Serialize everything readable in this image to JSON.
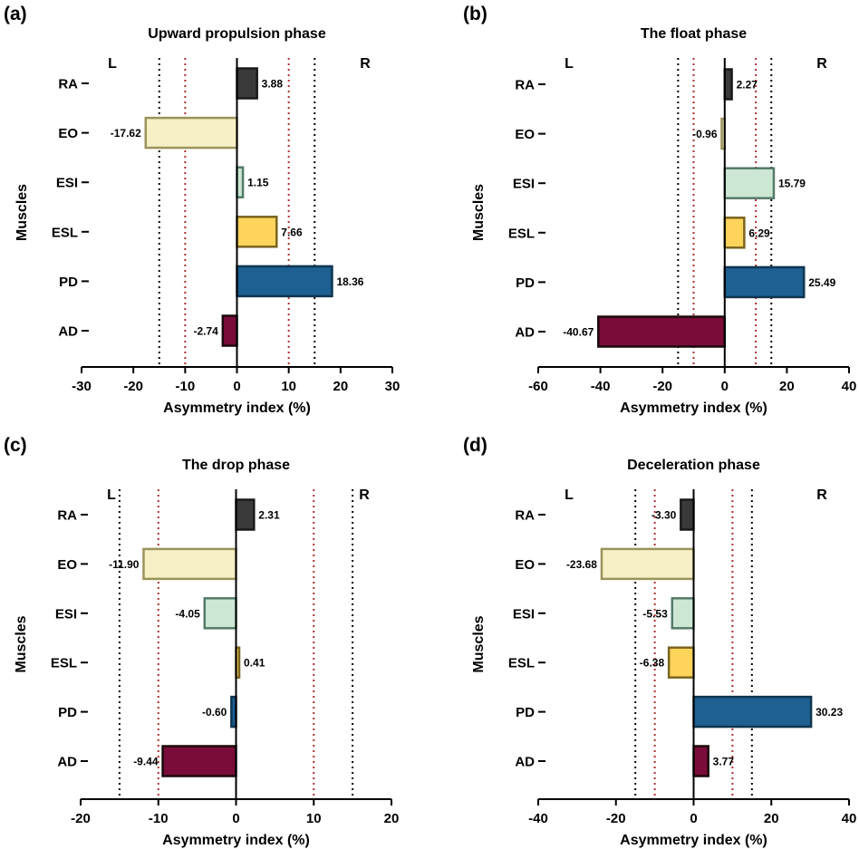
{
  "figure": {
    "line_colors": {
      "black_threshold": "#000000",
      "red_threshold": "#b03030",
      "axis": "#000000"
    },
    "muscle_colors": {
      "RA": {
        "fill": "#3a3a3a",
        "stroke": "#1a1a1a"
      },
      "EO": {
        "fill": "#f7efc5",
        "stroke": "#9b935a"
      },
      "ESI": {
        "fill": "#cce8d4",
        "stroke": "#557a6a"
      },
      "ESL": {
        "fill": "#fed45a",
        "stroke": "#7a6420"
      },
      "PD": {
        "fill": "#1d6091",
        "stroke": "#0f3550"
      },
      "AD": {
        "fill": "#7a0c3a",
        "stroke": "#1a0a0a"
      }
    }
  },
  "chart_data": [
    {
      "panel": "(a)",
      "type": "bar",
      "orientation": "horizontal",
      "title": "Upward propulsion phase",
      "xlabel": "Asymmetry index (%)",
      "ylabel": "Muscles",
      "left_label": "L",
      "right_label": "R",
      "categories": [
        "RA",
        "EO",
        "ESI",
        "ESL",
        "PD",
        "AD"
      ],
      "values": [
        3.88,
        -17.62,
        1.15,
        7.66,
        18.36,
        -2.74
      ],
      "value_labels": [
        "3.88",
        "-17.62",
        "1.15",
        "7.66",
        "18.36",
        "-2.74"
      ],
      "xlim": [
        -30,
        30
      ],
      "xticks": [
        -30,
        -20,
        -10,
        0,
        10,
        20,
        30
      ],
      "xtick_labels": [
        "-30",
        "-20",
        "-10",
        "0",
        "10",
        "20",
        "30"
      ],
      "ref_black": [
        -15,
        15
      ],
      "ref_red": [
        -10,
        10
      ]
    },
    {
      "panel": "(b)",
      "type": "bar",
      "orientation": "horizontal",
      "title": "The float phase",
      "xlabel": "Asymmetry index (%)",
      "ylabel": "Muscles",
      "left_label": "L",
      "right_label": "R",
      "categories": [
        "RA",
        "EO",
        "ESI",
        "ESL",
        "PD",
        "AD"
      ],
      "values": [
        2.27,
        -0.96,
        15.79,
        6.29,
        25.49,
        -40.67
      ],
      "value_labels": [
        "2.27",
        "-0.96",
        "15.79",
        "6.29",
        "25.49",
        "-40.67"
      ],
      "xlim": [
        -60,
        40
      ],
      "xticks": [
        -60,
        -40,
        -20,
        0,
        20,
        40
      ],
      "xtick_labels": [
        "-60",
        "-40",
        "-20",
        "0",
        "20",
        "40"
      ],
      "ref_black": [
        -15,
        15
      ],
      "ref_red": [
        -10,
        10
      ]
    },
    {
      "panel": "(c)",
      "type": "bar",
      "orientation": "horizontal",
      "title": "The drop phase",
      "xlabel": "Asymmetry index (%)",
      "ylabel": "Muscles",
      "left_label": "L",
      "right_label": "R",
      "categories": [
        "RA",
        "EO",
        "ESI",
        "ESL",
        "PD",
        "AD"
      ],
      "values": [
        2.31,
        -11.9,
        -4.05,
        0.41,
        -0.6,
        -9.44
      ],
      "value_labels": [
        "2.31",
        "-11.90",
        "-4.05",
        "0.41",
        "-0.60",
        "-9.44"
      ],
      "xlim": [
        -20,
        20
      ],
      "xticks": [
        -20,
        -10,
        0,
        10,
        20
      ],
      "xtick_labels": [
        "-20",
        "-10",
        "0",
        "10",
        "20"
      ],
      "ref_black": [
        -15,
        15
      ],
      "ref_red": [
        -10,
        10
      ]
    },
    {
      "panel": "(d)",
      "type": "bar",
      "orientation": "horizontal",
      "title": "Deceleration phase",
      "xlabel": "Asymmetry index (%)",
      "ylabel": "Muscles",
      "left_label": "L",
      "right_label": "R",
      "categories": [
        "RA",
        "EO",
        "ESI",
        "ESL",
        "PD",
        "AD"
      ],
      "values": [
        -3.3,
        -23.68,
        -5.53,
        -6.38,
        30.23,
        3.77
      ],
      "value_labels": [
        "-3.30",
        "-23.68",
        "-5.53",
        "-6.38",
        "30.23",
        "3.77"
      ],
      "xlim": [
        -40,
        40
      ],
      "xticks": [
        -40,
        -20,
        0,
        20,
        40
      ],
      "xtick_labels": [
        "-40",
        "-20",
        "0",
        "20",
        "40"
      ],
      "ref_black": [
        -15,
        15
      ],
      "ref_red": [
        -10,
        10
      ]
    }
  ]
}
